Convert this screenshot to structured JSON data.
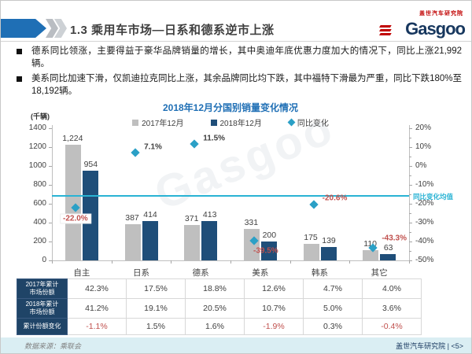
{
  "header": {
    "title": "1.3 乘用车市场—日系和德系逆市上涨",
    "logo": {
      "name": "Gasgoo",
      "tagline": "盖世汽车研究院"
    }
  },
  "bullets": [
    "德系同比领涨，主要得益于豪华品牌销量的增长，其中奥迪年底优惠力度加大的情况下，同比上涨21,992辆。",
    "美系同比加速下滑，仅凯迪拉克同比上涨，其余品牌同比均下跌，其中福特下滑最为严重，同比下跌180%至18,192辆。"
  ],
  "chart_data": {
    "type": "bar",
    "title": "2018年12月分国别销量变化情况",
    "unit_label": "(千辆)",
    "categories": [
      "自主",
      "日系",
      "德系",
      "美系",
      "韩系",
      "其它"
    ],
    "series": [
      {
        "name": "2017年12月",
        "values": [
          1224,
          387,
          371,
          331,
          175,
          110
        ],
        "labels": [
          "1,224",
          "387",
          "371",
          "331",
          "175",
          "110"
        ]
      },
      {
        "name": "2018年12月",
        "values": [
          954,
          414,
          413,
          200,
          139,
          63
        ],
        "labels": [
          "954",
          "414",
          "413",
          "200",
          "139",
          "63"
        ]
      }
    ],
    "yoy_series": {
      "name": "同比变化",
      "values": [
        -22.0,
        7.1,
        11.5,
        -39.5,
        -20.6,
        -43.3
      ],
      "labels": [
        "-22.0%",
        "7.1%",
        "11.5%",
        "-39.5%",
        "-20.6%",
        "-43.3%"
      ]
    },
    "avg_line": {
      "value": -16,
      "label": "同比变化均值"
    },
    "left_axis": {
      "min": 0,
      "max": 1400,
      "step": 200
    },
    "right_axis": {
      "min": -50,
      "max": 20,
      "step": 10,
      "minor_step": 5,
      "tick_labels": [
        "20%",
        "10%",
        "0%",
        "-10%",
        "-20%",
        "-30%",
        "-40%",
        "-50%"
      ]
    },
    "legend_position": "top",
    "grid": false,
    "colors": {
      "bar_2017": "#BFBFBF",
      "bar_2018": "#1F4E79",
      "yoy_diamond": "#2BA0C6",
      "avg_line": "#29B3D4",
      "negative_text": "#C0504D",
      "positive_text": "#404040",
      "title_blue": "#1F6FB5"
    }
  },
  "table": {
    "rows": [
      {
        "header": "2017年累计\n市场份额",
        "values": [
          "42.3%",
          "17.5%",
          "18.8%",
          "12.6%",
          "4.7%",
          "4.0%"
        ]
      },
      {
        "header": "2018年累计\n市场份额",
        "values": [
          "41.2%",
          "19.1%",
          "20.5%",
          "10.7%",
          "5.0%",
          "3.6%"
        ]
      },
      {
        "header": "累计份额变化",
        "values": [
          "-1.1%",
          "1.5%",
          "1.6%",
          "-1.9%",
          "0.3%",
          "-0.4%"
        ]
      }
    ]
  },
  "footer": {
    "source": "数据来源：乘联会",
    "credit": "盖世汽车研究院 | <5>"
  },
  "watermark": "Gasgoo"
}
